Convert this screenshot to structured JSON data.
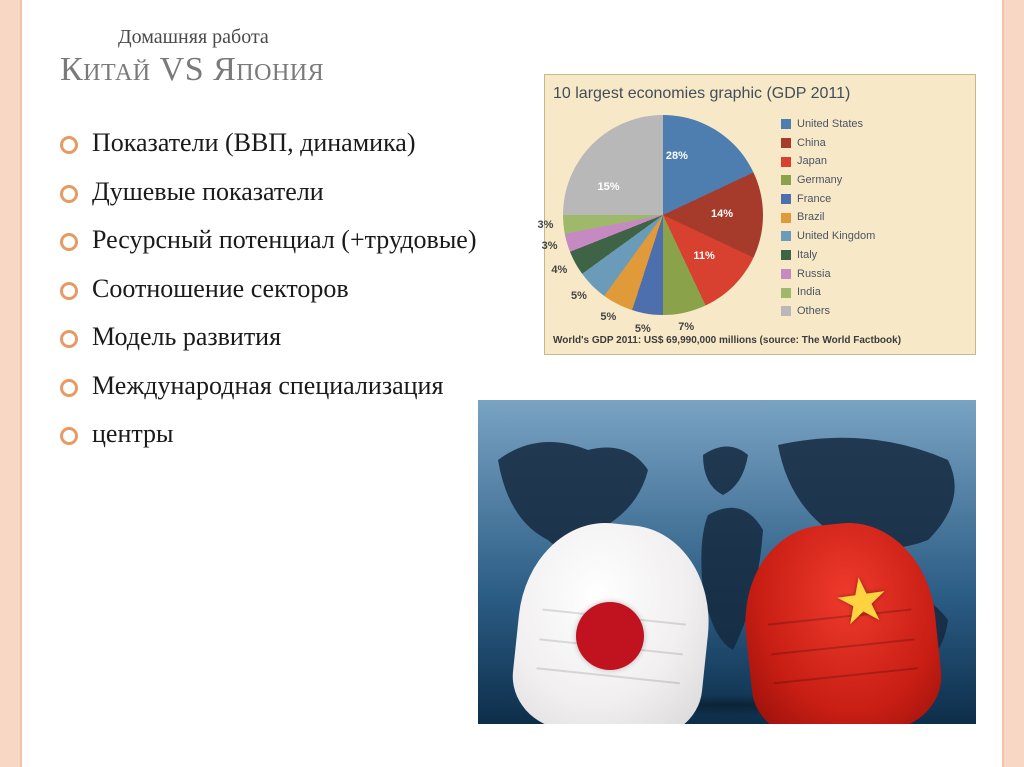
{
  "pretitle": "Домашняя работа",
  "title": "Китай VS Япония",
  "bullets": [
    "Показатели (ВВП, динамика)",
    "Душевые показатели",
    "Ресурсный потенциал (+трудовые)",
    "Соотношение секторов",
    "Модель развития",
    "Международная специализация",
    "центры"
  ],
  "chart": {
    "type": "pie",
    "title": "10 largest economies graphic (GDP 2011)",
    "background_color": "#f7e9c8",
    "slices": [
      {
        "label": "United States",
        "value": 28,
        "color": "#4d7eaf"
      },
      {
        "label": "China",
        "value": 14,
        "color": "#a63a2b"
      },
      {
        "label": "Japan",
        "value": 11,
        "color": "#d8412f"
      },
      {
        "label": "Germany",
        "value": 7,
        "color": "#8aa34b"
      },
      {
        "label": "France",
        "value": 5,
        "color": "#4e6fad"
      },
      {
        "label": "Brazil",
        "value": 5,
        "color": "#e09a3a"
      },
      {
        "label": "United Kingdom",
        "value": 5,
        "color": "#6a9bb8"
      },
      {
        "label": "Italy",
        "value": 4,
        "color": "#3e6345"
      },
      {
        "label": "Russia",
        "value": 3,
        "color": "#c58ac1"
      },
      {
        "label": "India",
        "value": 3,
        "color": "#9fb96a"
      },
      {
        "label": "Others",
        "value": 15,
        "color": "#b8b8b8"
      }
    ],
    "caption": "World's GDP 2011: US$ 69,990,000 millions (source: The World Factbook)",
    "label_fontsize": 11,
    "title_fontsize": 16,
    "title_color": "#434c59"
  },
  "illustration": {
    "description": "Two fists facing each other over a dark blue world map — left fist painted with Japanese flag (white with red circle), right fist painted with Chinese flag (red with yellow star).",
    "background_gradient": [
      "#7aa3c3",
      "#2c5d85",
      "#0d2e4a"
    ],
    "continent_color": "#152a3f",
    "japan_fist_color": "#ffffff",
    "japan_circle_color": "#c1121f",
    "china_fist_color": "#d82a1e",
    "china_star_color": "#ffd23f"
  },
  "accent_color": "#f9d7c5",
  "bullet_marker_color": "#e79a63",
  "title_color": "#7a7a7a",
  "body_text_color": "#1a1a1a"
}
